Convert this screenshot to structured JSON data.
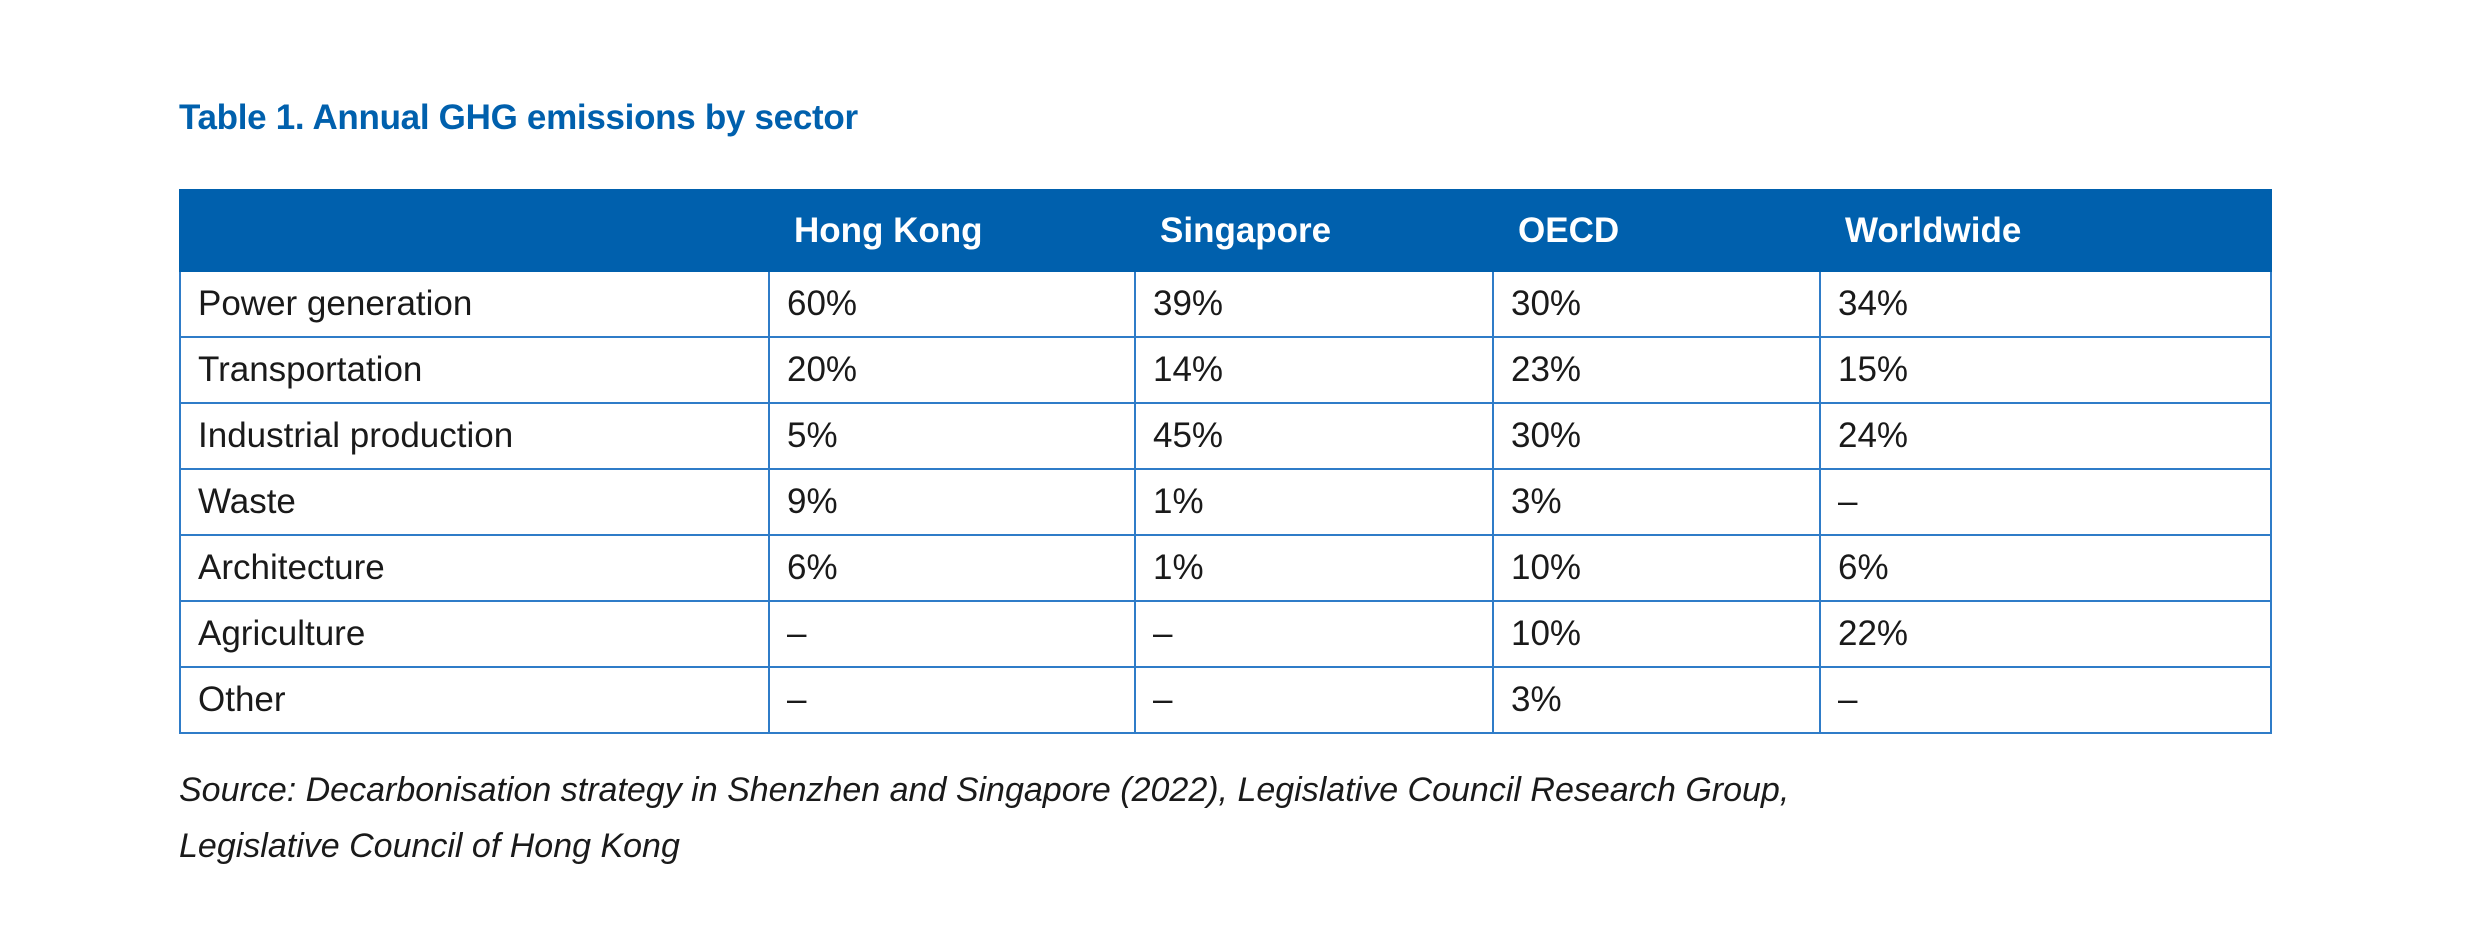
{
  "title": "Table 1. Annual GHG emissions by sector",
  "table": {
    "headers": [
      "",
      "Hong Kong",
      "Singapore",
      "OECD",
      "Worldwide"
    ],
    "rows": [
      [
        "Power generation",
        "60%",
        "39%",
        "30%",
        "34%"
      ],
      [
        "Transportation",
        "20%",
        "14%",
        "23%",
        "15%"
      ],
      [
        "Industrial production",
        "5%",
        "45%",
        "30%",
        "24%"
      ],
      [
        "Waste",
        "9%",
        "1%",
        "3%",
        "–"
      ],
      [
        "Architecture",
        "6%",
        "1%",
        "10%",
        "6%"
      ],
      [
        "Agriculture",
        "–",
        "–",
        "10%",
        "22%"
      ],
      [
        "Other",
        "–",
        "–",
        "3%",
        "–"
      ]
    ]
  },
  "source": {
    "line1": "Source: Decarbonisation strategy in Shenzhen and Singapore (2022), Legislative Council Research Group,",
    "line2": "Legislative Council of Hong Kong"
  },
  "colors": {
    "accent": "#0060ad",
    "grid": "#2f7cc8"
  }
}
